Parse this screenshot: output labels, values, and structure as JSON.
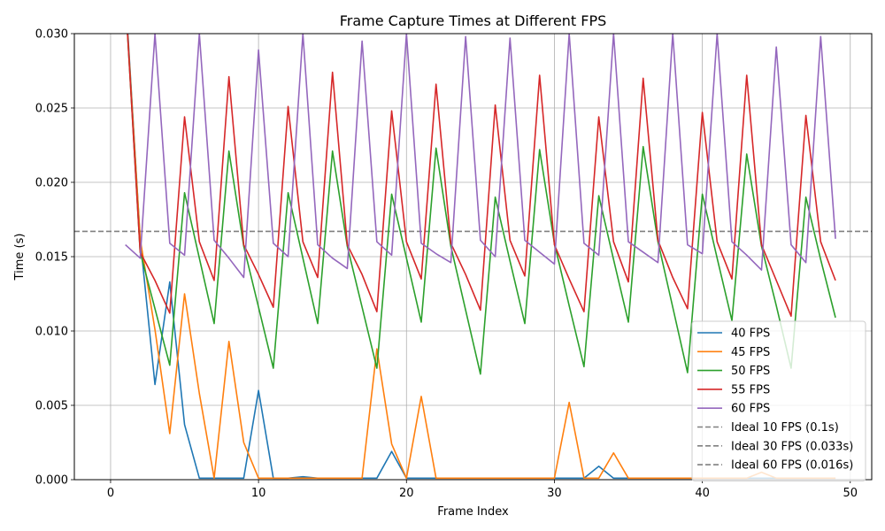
{
  "chart_data": {
    "type": "line",
    "title": "Frame Capture Times at Different FPS",
    "xlabel": "Frame Index",
    "ylabel": "Time (s)",
    "xlim": [
      -2.45,
      51.45
    ],
    "ylim": [
      0,
      0.03
    ],
    "xticks": [
      0,
      10,
      20,
      30,
      40,
      50
    ],
    "yticks": [
      0.0,
      0.005,
      0.01,
      0.015,
      0.02,
      0.025,
      0.03
    ],
    "ytick_labels": [
      "0.000",
      "0.005",
      "0.010",
      "0.015",
      "0.020",
      "0.025",
      "0.030"
    ],
    "grid": true,
    "legend_position": "lower right",
    "series": [
      {
        "name": "40 FPS",
        "color": "#1f77b4",
        "x": [
          1,
          2,
          3,
          4,
          5,
          6,
          7,
          8,
          9,
          10,
          11,
          12,
          13,
          14,
          15,
          16,
          17,
          18,
          19,
          20,
          21,
          22,
          23,
          24,
          25,
          26,
          27,
          28,
          29,
          30,
          31,
          32,
          33,
          34,
          35,
          36,
          37,
          38,
          39,
          40,
          41,
          42,
          43,
          44,
          45,
          46,
          47,
          48,
          49
        ],
        "values": [
          0.0328,
          0.0162,
          0.0064,
          0.0133,
          0.0037,
          0.0001,
          0.0001,
          0.0001,
          0.0001,
          0.006,
          0.0001,
          0.0001,
          0.0002,
          0.0001,
          0.0001,
          0.0001,
          0.0001,
          0.0001,
          0.0019,
          0.0001,
          0.0001,
          0.0001,
          0.0001,
          0.0001,
          0.0001,
          0.0001,
          0.0001,
          0.0001,
          0.0001,
          0.0001,
          0.0001,
          0.0001,
          0.0009,
          0.0001,
          0.0001,
          0.0001,
          0.0001,
          0.0001,
          0.0001,
          0.0001,
          0.0001,
          0.0001,
          0.0001,
          0.0001,
          0.0001,
          0.0001,
          0.0001,
          0.0001,
          0.0001
        ]
      },
      {
        "name": "45 FPS",
        "color": "#ff7f0e",
        "x": [
          1,
          2,
          3,
          4,
          5,
          6,
          7,
          8,
          9,
          10,
          11,
          12,
          13,
          14,
          15,
          16,
          17,
          18,
          19,
          20,
          21,
          22,
          23,
          24,
          25,
          26,
          27,
          28,
          29,
          30,
          31,
          32,
          33,
          34,
          35,
          36,
          37,
          38,
          39,
          40,
          41,
          42,
          43,
          44,
          45,
          46,
          47,
          48,
          49
        ],
        "values": [
          0.0325,
          0.0162,
          0.0101,
          0.0031,
          0.0125,
          0.0058,
          0.0001,
          0.0093,
          0.0025,
          0.0001,
          0.0001,
          0.0001,
          0.0001,
          0.0001,
          0.0001,
          0.0001,
          0.0001,
          0.0088,
          0.0024,
          0.0001,
          0.0056,
          0.0001,
          0.0001,
          0.0001,
          0.0001,
          0.0001,
          0.0001,
          0.0001,
          0.0001,
          0.0001,
          0.0052,
          0.0001,
          0.0001,
          0.0018,
          0.0001,
          0.0001,
          0.0001,
          0.0001,
          0.0001,
          0.0001,
          0.0001,
          0.0001,
          0.0001,
          0.0005,
          0.0001,
          0.0001,
          0.0001,
          0.0001,
          0.0001
        ]
      },
      {
        "name": "50 FPS",
        "color": "#2ca02c",
        "x": [
          1,
          2,
          3,
          4,
          5,
          6,
          7,
          8,
          9,
          10,
          11,
          12,
          13,
          14,
          15,
          16,
          17,
          18,
          19,
          20,
          21,
          22,
          23,
          24,
          25,
          26,
          27,
          28,
          29,
          30,
          31,
          32,
          33,
          34,
          35,
          36,
          37,
          38,
          39,
          40,
          41,
          42,
          43,
          44,
          45,
          46,
          47,
          48,
          49
        ],
        "values": [
          0.0325,
          0.0153,
          0.0115,
          0.0077,
          0.0193,
          0.0149,
          0.0105,
          0.0221,
          0.0157,
          0.0116,
          0.0075,
          0.0193,
          0.0149,
          0.0105,
          0.0221,
          0.0157,
          0.0116,
          0.0075,
          0.0192,
          0.0149,
          0.0106,
          0.0223,
          0.0157,
          0.0114,
          0.0071,
          0.019,
          0.0147,
          0.0105,
          0.0222,
          0.0159,
          0.0117,
          0.0076,
          0.0191,
          0.0148,
          0.0106,
          0.0224,
          0.016,
          0.0116,
          0.0072,
          0.0192,
          0.0149,
          0.0107,
          0.0219,
          0.0157,
          0.0117,
          0.0075,
          0.019,
          0.0148,
          0.0109
        ]
      },
      {
        "name": "55 FPS",
        "color": "#d62728",
        "x": [
          1,
          2,
          3,
          4,
          5,
          6,
          7,
          8,
          9,
          10,
          11,
          12,
          13,
          14,
          15,
          16,
          17,
          18,
          19,
          20,
          21,
          22,
          23,
          24,
          25,
          26,
          27,
          28,
          29,
          30,
          31,
          32,
          33,
          34,
          35,
          36,
          37,
          38,
          39,
          40,
          41,
          42,
          43,
          44,
          45,
          46,
          47,
          48,
          49
        ],
        "values": [
          0.0325,
          0.0153,
          0.0134,
          0.0112,
          0.0244,
          0.016,
          0.0134,
          0.0271,
          0.0158,
          0.0138,
          0.0116,
          0.0251,
          0.016,
          0.0136,
          0.0274,
          0.0158,
          0.0138,
          0.0113,
          0.0248,
          0.016,
          0.0135,
          0.0266,
          0.0159,
          0.0138,
          0.0114,
          0.0252,
          0.0161,
          0.0137,
          0.0272,
          0.0158,
          0.0135,
          0.0113,
          0.0244,
          0.016,
          0.0133,
          0.027,
          0.0161,
          0.0136,
          0.0115,
          0.0247,
          0.016,
          0.0135,
          0.0272,
          0.0158,
          0.0134,
          0.011,
          0.0245,
          0.016,
          0.0134
        ]
      },
      {
        "name": "60 FPS",
        "color": "#9467bd",
        "x": [
          1,
          2,
          3,
          4,
          5,
          6,
          7,
          8,
          9,
          10,
          11,
          12,
          13,
          14,
          15,
          16,
          17,
          18,
          19,
          20,
          21,
          22,
          23,
          24,
          25,
          26,
          27,
          28,
          29,
          30,
          31,
          32,
          33,
          34,
          35,
          36,
          37,
          38,
          39,
          40,
          41,
          42,
          43,
          44,
          45,
          46,
          47,
          48,
          49
        ],
        "values": [
          0.0158,
          0.0149,
          0.03,
          0.0159,
          0.0151,
          0.03,
          0.0161,
          0.0149,
          0.0136,
          0.0289,
          0.0159,
          0.015,
          0.03,
          0.0158,
          0.0149,
          0.0142,
          0.0295,
          0.016,
          0.0151,
          0.03,
          0.0159,
          0.0152,
          0.0146,
          0.0298,
          0.0161,
          0.015,
          0.0297,
          0.0161,
          0.0153,
          0.0145,
          0.03,
          0.0159,
          0.0151,
          0.03,
          0.016,
          0.0153,
          0.0146,
          0.03,
          0.0158,
          0.0152,
          0.03,
          0.016,
          0.0151,
          0.0141,
          0.0291,
          0.0158,
          0.0146,
          0.0298,
          0.0162
        ]
      }
    ],
    "reference_lines": [
      {
        "name": "Ideal 10 FPS (0.1s)",
        "y": 0.1,
        "color": "#808080"
      },
      {
        "name": "Ideal 30 FPS (0.033s)",
        "y": 0.0333,
        "color": "#808080"
      },
      {
        "name": "Ideal 60 FPS (0.016s)",
        "y": 0.0167,
        "color": "#808080"
      }
    ]
  }
}
